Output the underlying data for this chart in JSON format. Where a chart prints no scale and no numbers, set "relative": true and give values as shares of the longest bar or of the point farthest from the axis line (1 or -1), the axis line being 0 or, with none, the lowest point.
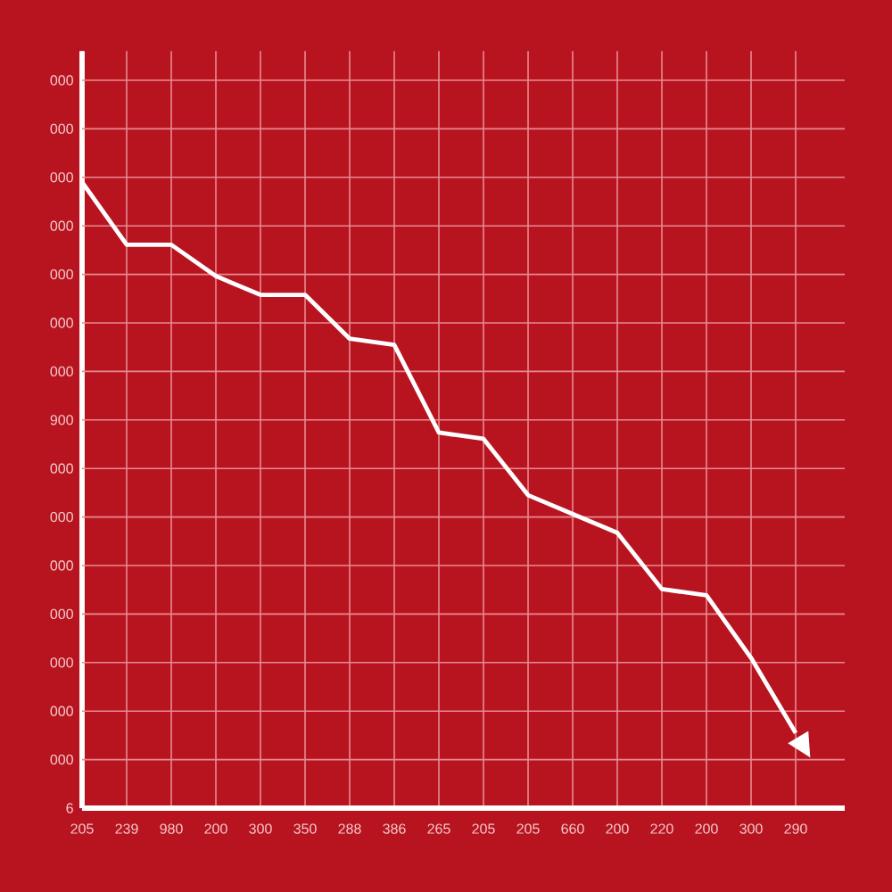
{
  "chart_data": {
    "type": "line",
    "relative": true,
    "categories": [
      "205",
      "239",
      "980",
      "200",
      "300",
      "350",
      "288",
      "386",
      "265",
      "205",
      "205",
      "660",
      "200",
      "220",
      "200",
      "300",
      "290"
    ],
    "series": [
      {
        "color": "#ffffff",
        "values": [
          1,
          0.9,
          0.9,
          0.85,
          0.82,
          0.82,
          0.75,
          0.74,
          0.6,
          0.59,
          0.5,
          0.47,
          0.44,
          0.35,
          0.34,
          0.24,
          0.12
        ]
      }
    ],
    "annotations": [
      "6",
      "000",
      "000",
      "000",
      "000",
      "000",
      "000",
      "000",
      "900",
      "000",
      "000",
      "000",
      "000",
      "000",
      "000",
      "000"
    ],
    "grid": true,
    "marker": "none",
    "line_style": "solid"
  }
}
